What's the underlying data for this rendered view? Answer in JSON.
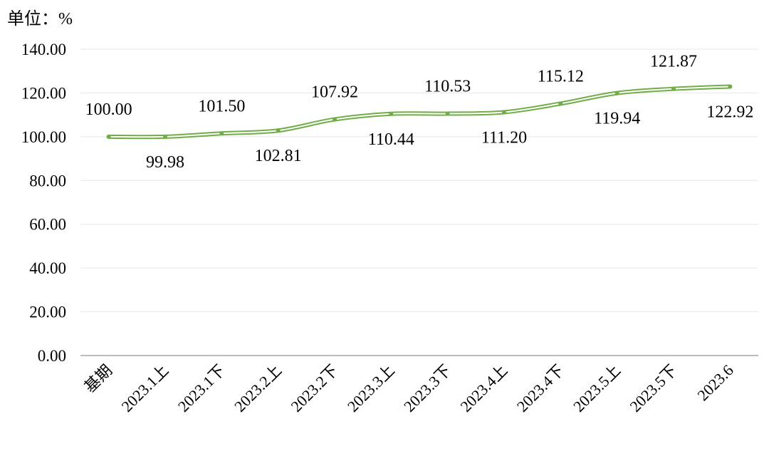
{
  "chart_data": {
    "type": "line",
    "unit_label": "单位：%",
    "categories": [
      "基期",
      "2023.1上",
      "2023.1下",
      "2023.2上",
      "2023.2下",
      "2023.3上",
      "2023.3下",
      "2023.4上",
      "2023.4下",
      "2023.5上",
      "2023.5下",
      "2023.6"
    ],
    "values": [
      100.0,
      99.98,
      101.5,
      102.81,
      107.92,
      110.44,
      110.53,
      111.2,
      115.12,
      119.94,
      121.87,
      122.92
    ],
    "data_labels": [
      "100.00",
      "99.98",
      "101.50",
      "102.81",
      "107.92",
      "110.44",
      "110.53",
      "111.20",
      "115.12",
      "119.94",
      "121.87",
      "122.92"
    ],
    "label_positions": [
      "above",
      "below",
      "above",
      "below",
      "above",
      "below",
      "above",
      "below",
      "above",
      "below",
      "above",
      "below"
    ],
    "ylim": [
      0,
      140
    ],
    "yticks": [
      "0.00",
      "20.00",
      "40.00",
      "60.00",
      "80.00",
      "100.00",
      "120.00",
      "140.00"
    ],
    "grid": true,
    "legend": "none",
    "line_color": "#70ad47",
    "line_style": "smooth-double"
  }
}
